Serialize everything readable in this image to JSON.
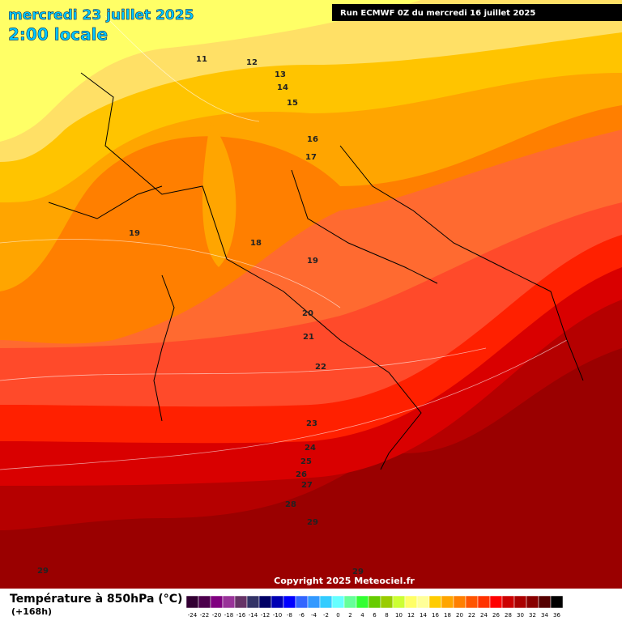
{
  "header": {
    "title": "mercredi 23 juillet 2025",
    "subtitle": "2:00 locale",
    "run": "Run ECMWF 0Z du mercredi 16 juillet 2025"
  },
  "map": {
    "contour_labels": [
      11,
      12,
      13,
      14,
      15,
      16,
      17,
      19,
      18,
      19,
      20,
      21,
      22,
      23,
      24,
      25,
      26,
      27,
      28,
      29,
      29,
      29
    ]
  },
  "copyright": "Copyright 2025 Meteociel.fr",
  "legend": {
    "title": "Température à 850hPa (°C)",
    "lead": "(+168h)",
    "labels": [
      -24,
      -22,
      -20,
      -18,
      -16,
      -14,
      -12,
      -10,
      -8,
      -6,
      -4,
      -2,
      0,
      2,
      4,
      6,
      8,
      10,
      12,
      14,
      16,
      18,
      20,
      22,
      24,
      26,
      28,
      30,
      32,
      34,
      36
    ],
    "colors": [
      "#330033",
      "#4d004d",
      "#800080",
      "#993399",
      "#663366",
      "#333366",
      "#000066",
      "#0000b3",
      "#0000ff",
      "#3366ff",
      "#3399ff",
      "#33ccff",
      "#66ffff",
      "#66ff99",
      "#33ff33",
      "#66cc00",
      "#99cc00",
      "#ccff33",
      "#ffff66",
      "#ffff99",
      "#ffcc00",
      "#ffa500",
      "#ff7f00",
      "#ff5500",
      "#ff3300",
      "#ff0000",
      "#cc0000",
      "#aa0000",
      "#880000",
      "#550000",
      "#000000"
    ]
  }
}
